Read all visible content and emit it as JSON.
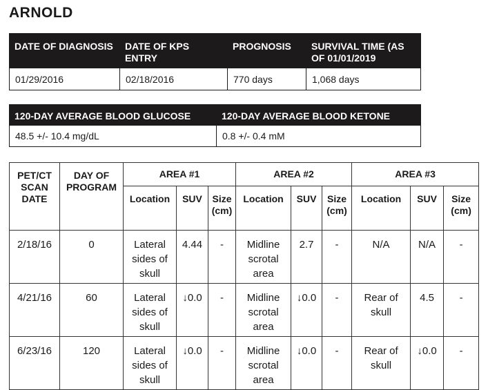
{
  "title": "ARNOLD",
  "summary": {
    "headers": [
      "DATE OF DIAGNOSIS",
      "DATE OF KPS ENTRY",
      "PROGNOSIS",
      "SURVIVAL TIME (AS OF 01/01/2019"
    ],
    "values": [
      "01/29/2016",
      "02/18/2016",
      "770 days",
      "1,068 days"
    ]
  },
  "averages": {
    "headers": [
      "120-DAY AVERAGE BLOOD GLUCOSE",
      "120-DAY AVERAGE BLOOD KETONE"
    ],
    "values": [
      "48.5 +/- 10.4 mg/dL",
      "0.8 +/- 0.4 mM"
    ]
  },
  "scans": {
    "col_scan_date": "PET/CT SCAN DATE",
    "col_day": "DAY OF PROGRAM",
    "areas": [
      "AREA #1",
      "AREA #2",
      "AREA #3"
    ],
    "sub_location": "Location",
    "sub_suv": "SUV",
    "sub_size_line1": "Size",
    "sub_size_line2": "(cm)",
    "rows": [
      {
        "date": "2/18/16",
        "day": "0",
        "cells": [
          {
            "loc": "Lateral sides of skull",
            "suv": "4.44",
            "size": "-"
          },
          {
            "loc": "Midline scrotal area",
            "suv": "2.7",
            "size": "-"
          },
          {
            "loc": "N/A",
            "suv": "N/A",
            "size": "-"
          }
        ]
      },
      {
        "date": "4/21/16",
        "day": "60",
        "cells": [
          {
            "loc": "Lateral sides of skull",
            "suv": "↓0.0",
            "size": "-"
          },
          {
            "loc": "Midline scrotal area",
            "suv": "↓0.0",
            "size": "-"
          },
          {
            "loc": "Rear of skull",
            "suv": "4.5",
            "size": "-"
          }
        ]
      },
      {
        "date": "6/23/16",
        "day": "120",
        "cells": [
          {
            "loc": "Lateral sides of skull",
            "suv": "↓0.0",
            "size": "-"
          },
          {
            "loc": "Midline scrotal area",
            "suv": "↓0.0",
            "size": "-"
          },
          {
            "loc": "Rear of skull",
            "suv": "↓0.0",
            "size": "-"
          }
        ]
      }
    ]
  }
}
